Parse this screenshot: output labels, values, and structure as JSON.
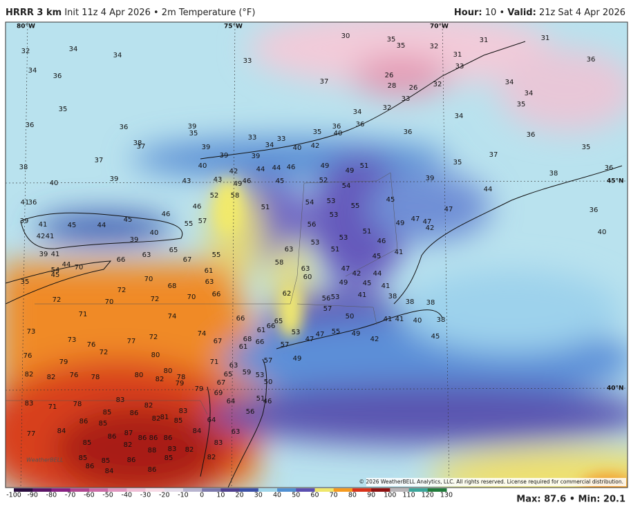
{
  "header": {
    "model": "HRRR 3 km",
    "product": "Init 11z 4 Apr 2026 • 2m Temperature (°F)",
    "hour_label": "Hour:",
    "hour": "10",
    "separator": "•",
    "valid_label": "Valid:",
    "valid": "21z Sat 4 Apr 2026"
  },
  "map": {
    "grid_labels": [
      "80°W",
      "75°W",
      "70°W",
      "45°N",
      "40°N"
    ],
    "temperature_labels": [
      32,
      34,
      34,
      34,
      36,
      33,
      37,
      30,
      35,
      35,
      32,
      31,
      33,
      31,
      31,
      36,
      26,
      28,
      26,
      32,
      33,
      34,
      34,
      35,
      35,
      36,
      36,
      39,
      35,
      33,
      33,
      34,
      38,
      37,
      39,
      37,
      39,
      39,
      35,
      36,
      40,
      34,
      36,
      32,
      36,
      34,
      36,
      35,
      42,
      40,
      38,
      40,
      42,
      44,
      44,
      46,
      49,
      49,
      51,
      35,
      37,
      38,
      36,
      40,
      39,
      43,
      43,
      49,
      46,
      45,
      52,
      54,
      39,
      44,
      41,
      36,
      52,
      58,
      51,
      54,
      53,
      55,
      45,
      46,
      46,
      45,
      39,
      41,
      45,
      44,
      55,
      57,
      53,
      47,
      47,
      47,
      42,
      36,
      42,
      41,
      40,
      39,
      56,
      51,
      49,
      40,
      65,
      67,
      55,
      63,
      53,
      53,
      46,
      51,
      39,
      41,
      63,
      66,
      58,
      41,
      45,
      70,
      44,
      54,
      45,
      63,
      47,
      42,
      44,
      61,
      70,
      68,
      63,
      60,
      49,
      45,
      41,
      35,
      72,
      66,
      62,
      56,
      53,
      41,
      38,
      38,
      38,
      72,
      70,
      72,
      70,
      57,
      71,
      74,
      66,
      50,
      41,
      41,
      40,
      38,
      66,
      65,
      61,
      73,
      74,
      55,
      49,
      53,
      47,
      47,
      68,
      66,
      61,
      67,
      42,
      45,
      73,
      76,
      77,
      72,
      57,
      72,
      80,
      57,
      49,
      76,
      79,
      71,
      63,
      82,
      82,
      76,
      78,
      80,
      80,
      78,
      59,
      65,
      53,
      82,
      79,
      50,
      67,
      79,
      69,
      51,
      46,
      83,
      78,
      83,
      71,
      85,
      82,
      86,
      81,
      83,
      64,
      56,
      86,
      85,
      82,
      85,
      64,
      77,
      84,
      87,
      86,
      86,
      84,
      63,
      86,
      86,
      83,
      85,
      82,
      83,
      82,
      88,
      85,
      85,
      86,
      85,
      82,
      86,
      84,
      86
    ],
    "logo": "WeatherBELL",
    "copyright": "© 2026 WeatherBELL Analytics, LLC. All rights reserved. License required for commercial distribution."
  },
  "colorbar": {
    "ticks": [
      -100,
      -90,
      -80,
      -70,
      -60,
      -50,
      -40,
      -30,
      -20,
      -10,
      0,
      10,
      20,
      30,
      40,
      50,
      60,
      70,
      80,
      90,
      100,
      110,
      120,
      130
    ],
    "colors": [
      "#2a0b3e",
      "#5b1466",
      "#882082",
      "#b0458f",
      "#cc6aa6",
      "#e097c0",
      "#efbfd6",
      "#f7dbe6",
      "#e4dcea",
      "#b8b4cf",
      "#7c78ab",
      "#4e3f8e",
      "#3a4fa6",
      "#9fd6ea",
      "#4f8fd2",
      "#5b4fb0",
      "#efe76a",
      "#f59a1e",
      "#d8321a",
      "#8e1010",
      "#b9b5b8",
      "#3aa59a",
      "#1f7a3a"
    ]
  },
  "footer": {
    "stats": "Max: 87.6 • Min: 20.1"
  }
}
